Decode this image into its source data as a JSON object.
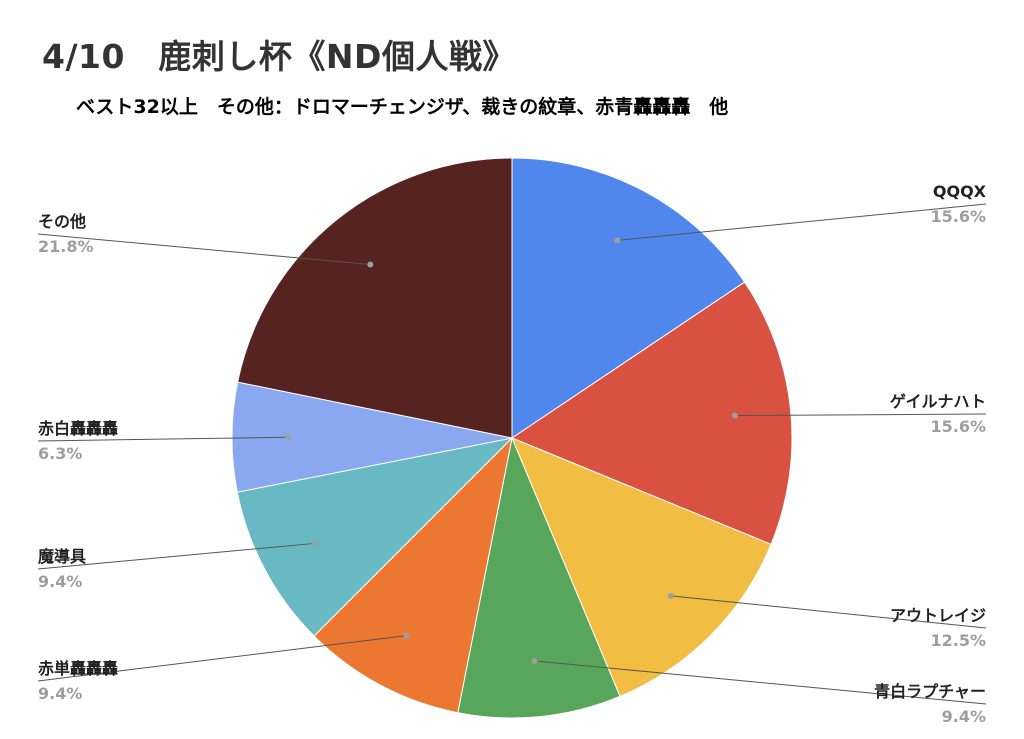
{
  "title": "4/10　鹿刺し杯《ND個人戦》",
  "subtitle": "ベスト32以上　その他：ドロマーチェンジザ、裁きの紋章、赤青轟轟轟　他",
  "chart_data": {
    "type": "pie",
    "title": "4/10　鹿刺し杯《ND個人戦》",
    "subtitle": "ベスト32以上　その他：ドロマーチェンジザ、裁きの紋章、赤青轟轟轟　他",
    "start_angle": "12 o'clock",
    "direction": "clockwise",
    "labels_shown": "name and percent, with leader lines",
    "slices": [
      {
        "label": "QQQX",
        "value": 15.6,
        "display": "15.6%",
        "color": "#5087ec"
      },
      {
        "label": "ゲイルナハト",
        "value": 15.6,
        "display": "15.6%",
        "color": "#d95140"
      },
      {
        "label": "アウトレイジ",
        "value": 12.5,
        "display": "12.5%",
        "color": "#f1bd42"
      },
      {
        "label": "青白ラプチャー",
        "value": 9.4,
        "display": "9.4%",
        "color": "#58a65c"
      },
      {
        "label": "赤単轟轟轟",
        "value": 9.4,
        "display": "9.4%",
        "color": "#ec7730"
      },
      {
        "label": "魔導具",
        "value": 9.4,
        "display": "9.4%",
        "color": "#68b9c4"
      },
      {
        "label": "赤白轟轟轟",
        "value": 6.3,
        "display": "6.3%",
        "color": "#89a8f0"
      },
      {
        "label": "その他",
        "value": 21.8,
        "display": "21.8%",
        "color": "#562320"
      }
    ]
  }
}
